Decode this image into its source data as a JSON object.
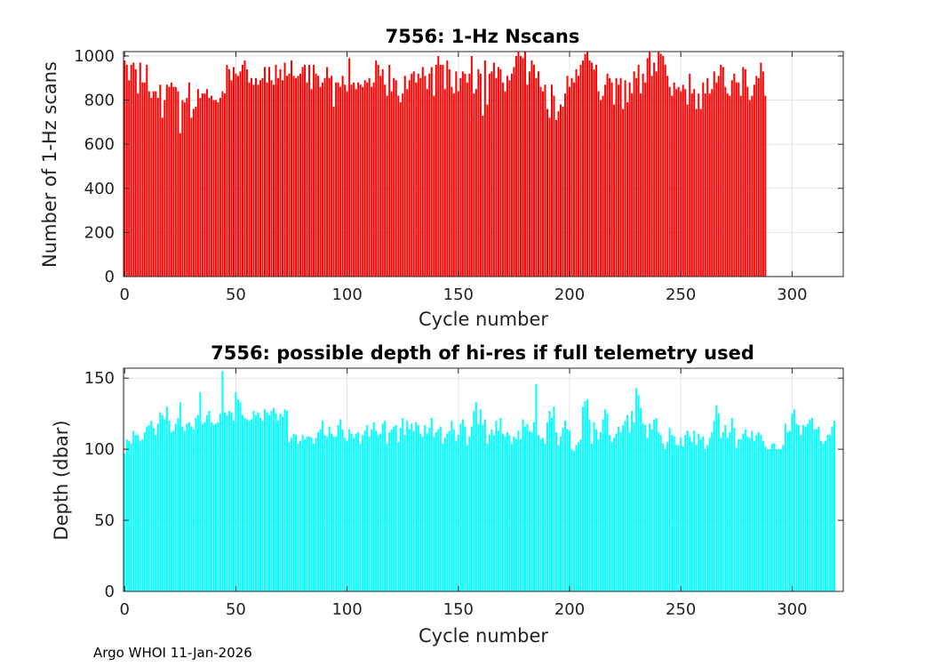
{
  "chart_data": [
    {
      "type": "bar",
      "title": "7556: 1-Hz Nscans",
      "xlabel": "Cycle number",
      "ylabel": "Number of 1-Hz scans",
      "xlim": [
        -0.5,
        323
      ],
      "ylim": [
        0,
        1020
      ],
      "xticks": [
        0,
        50,
        100,
        150,
        200,
        250,
        300
      ],
      "yticks": [
        0,
        200,
        400,
        600,
        800,
        1000
      ],
      "grid": true,
      "color": "#ff0000",
      "x_start": 0,
      "values": [
        980,
        960,
        890,
        960,
        970,
        940,
        830,
        970,
        880,
        880,
        960,
        840,
        810,
        840,
        840,
        810,
        870,
        720,
        800,
        870,
        860,
        880,
        860,
        860,
        840,
        650,
        800,
        790,
        810,
        880,
        720,
        760,
        770,
        850,
        810,
        830,
        830,
        850,
        810,
        820,
        800,
        800,
        790,
        810,
        840,
        830,
        960,
        940,
        890,
        950,
        920,
        910,
        930,
        960,
        980,
        940,
        880,
        900,
        870,
        900,
        870,
        890,
        900,
        950,
        880,
        950,
        890,
        870,
        960,
        900,
        940,
        890,
        970,
        910,
        920,
        980,
        910,
        900,
        910,
        920,
        950,
        960,
        880,
        960,
        850,
        960,
        920,
        910,
        860,
        880,
        900,
        950,
        900,
        910,
        770,
        880,
        880,
        860,
        910,
        870,
        840,
        990,
        870,
        880,
        850,
        880,
        870,
        860,
        890,
        880,
        900,
        860,
        880,
        980,
        960,
        910,
        940,
        870,
        820,
        960,
        840,
        900,
        890,
        820,
        790,
        830,
        910,
        850,
        890,
        920,
        930,
        880,
        920,
        900,
        950,
        910,
        850,
        920,
        950,
        820,
        960,
        1000,
        960,
        960,
        850,
        980,
        940,
        860,
        830,
        930,
        840,
        900,
        930,
        920,
        880,
        920,
        1000,
        830,
        850,
        940,
        920,
        730,
        980,
        780,
        920,
        930,
        970,
        900,
        950,
        940,
        880,
        840,
        910,
        890,
        920,
        950,
        1000,
        1020,
        1000,
        990,
        1020,
        870,
        930,
        980,
        960,
        900,
        930,
        860,
        840,
        870,
        760,
        720,
        870,
        820,
        710,
        750,
        780,
        770,
        830,
        910,
        860,
        900,
        880,
        940,
        910,
        960,
        980,
        1010,
        1020,
        980,
        970,
        940,
        960,
        840,
        800,
        820,
        870,
        920,
        900,
        880,
        780,
        900,
        870,
        900,
        760,
        890,
        790,
        880,
        830,
        930,
        900,
        960,
        830,
        920,
        880,
        990,
        1020,
        910,
        970,
        930,
        1020,
        1010,
        1000,
        960,
        910,
        860,
        820,
        880,
        850,
        860,
        840,
        870,
        850,
        780,
        920,
        830,
        850,
        760,
        830,
        760,
        880,
        830,
        900,
        830,
        850,
        930,
        880,
        910,
        960,
        950,
        860,
        830,
        820,
        890,
        920,
        880,
        880,
        820,
        950,
        940,
        860,
        800,
        820,
        870,
        910,
        900,
        970,
        930,
        820
      ]
    },
    {
      "type": "bar",
      "title": "7556: possible depth of hi-res if full telemetry used",
      "xlabel": "Cycle number",
      "ylabel": "Depth (dbar)",
      "xlim": [
        -0.5,
        323
      ],
      "ylim": [
        0,
        157
      ],
      "xticks": [
        0,
        50,
        100,
        150,
        200,
        250,
        300
      ],
      "yticks": [
        0,
        50,
        100,
        150
      ],
      "grid": true,
      "color": "#00ffff",
      "x_start": 0,
      "values": [
        97,
        107,
        106,
        104,
        113,
        110,
        110,
        106,
        107,
        112,
        116,
        117,
        120,
        115,
        110,
        118,
        126,
        124,
        121,
        130,
        120,
        112,
        113,
        118,
        122,
        133,
        116,
        113,
        118,
        119,
        116,
        114,
        122,
        124,
        140,
        118,
        119,
        124,
        127,
        119,
        117,
        118,
        119,
        125,
        155,
        126,
        124,
        127,
        126,
        120,
        140,
        135,
        133,
        124,
        122,
        121,
        120,
        121,
        127,
        124,
        126,
        122,
        120,
        128,
        126,
        124,
        127,
        129,
        125,
        120,
        125,
        123,
        128,
        127,
        105,
        108,
        111,
        110,
        104,
        106,
        110,
        107,
        109,
        109,
        108,
        104,
        108,
        112,
        114,
        120,
        110,
        109,
        116,
        111,
        109,
        109,
        117,
        121,
        114,
        108,
        106,
        114,
        111,
        108,
        111,
        112,
        104,
        110,
        113,
        117,
        109,
        114,
        119,
        113,
        110,
        111,
        118,
        120,
        104,
        112,
        114,
        116,
        117,
        105,
        115,
        122,
        110,
        120,
        114,
        118,
        113,
        119,
        117,
        111,
        109,
        117,
        111,
        115,
        122,
        109,
        112,
        114,
        116,
        104,
        108,
        111,
        113,
        120,
        114,
        106,
        110,
        118,
        121,
        116,
        103,
        109,
        116,
        127,
        133,
        118,
        128,
        117,
        121,
        104,
        110,
        114,
        110,
        120,
        113,
        122,
        111,
        109,
        112,
        110,
        104,
        109,
        107,
        113,
        107,
        121,
        116,
        118,
        113,
        112,
        119,
        146,
        110,
        107,
        108,
        104,
        119,
        127,
        122,
        130,
        112,
        103,
        109,
        115,
        120,
        114,
        113,
        100,
        99,
        103,
        105,
        107,
        130,
        134,
        135,
        121,
        104,
        119,
        114,
        107,
        112,
        121,
        128,
        125,
        110,
        105,
        108,
        111,
        116,
        112,
        117,
        120,
        124,
        112,
        127,
        119,
        143,
        138,
        129,
        118,
        117,
        108,
        118,
        114,
        121,
        122,
        112,
        110,
        104,
        100,
        105,
        115,
        110,
        109,
        103,
        103,
        108,
        102,
        110,
        113,
        109,
        105,
        113,
        103,
        111,
        107,
        109,
        100,
        103,
        108,
        112,
        120,
        131,
        125,
        108,
        112,
        117,
        108,
        112,
        122,
        115,
        101,
        107,
        107,
        111,
        114,
        109,
        108,
        113,
        106,
        110,
        112,
        110,
        106,
        102,
        100,
        100,
        104,
        104,
        100,
        100,
        100,
        103,
        118,
        112,
        113,
        125,
        128,
        118,
        117,
        110,
        117,
        116,
        118,
        121,
        122,
        114,
        114,
        116,
        106,
        104,
        106,
        110,
        110,
        116,
        120
      ]
    }
  ],
  "footer": "Argo WHOI 11-Jan-2026"
}
